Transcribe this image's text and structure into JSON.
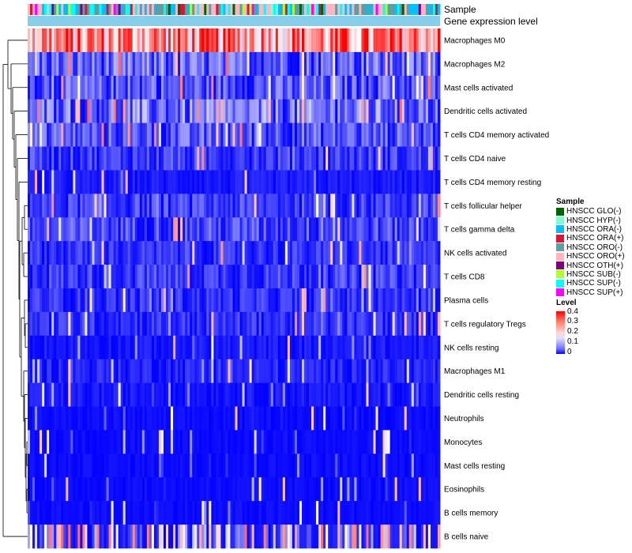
{
  "chart_data": {
    "type": "heatmap",
    "annotation_labels": [
      "Sample",
      "Gene expression level"
    ],
    "rows": [
      "Macrophages M0",
      "Macrophages M2",
      "Mast cells activated",
      "Dendritic cells activated",
      "T cells CD4 memory activated",
      "T cells CD4 naive",
      "T cells CD4 memory resting",
      "T cells follicular helper",
      "T cells gamma delta",
      "NK cells activated",
      "T cells CD8",
      "Plasma cells",
      "T cells regulatory  Tregs",
      "NK cells resting",
      "Macrophages M1",
      "Dendritic cells resting",
      "Neutrophils",
      "Monocytes",
      "Mast cells resting",
      "Eosinophils",
      "B cells memory",
      "B cells naive"
    ],
    "row_mean_level": [
      0.3,
      0.08,
      0.07,
      0.09,
      0.07,
      0.05,
      0.02,
      0.05,
      0.06,
      0.04,
      0.05,
      0.04,
      0.04,
      0.02,
      0.03,
      0.02,
      0.01,
      0.01,
      0.01,
      0.01,
      0.01,
      0.12
    ],
    "columns": 173,
    "sample_legend_title": "Sample",
    "sample_groups": [
      {
        "name": "HNSCC GLO(-)",
        "color": "#006400"
      },
      {
        "name": "HNSCC HYP(-)",
        "color": "#7fffd4"
      },
      {
        "name": "HNSCC ORA(-)",
        "color": "#00bfff"
      },
      {
        "name": "HNSCC ORA(+)",
        "color": "#dc143c"
      },
      {
        "name": "HNSCC ORO(-)",
        "color": "#5f9ea0"
      },
      {
        "name": "HNSCC ORO(+)",
        "color": "#ffb6c1"
      },
      {
        "name": "HNSCC OTH(+)",
        "color": "#800080"
      },
      {
        "name": "HNSCC SUB(-)",
        "color": "#adff2f"
      },
      {
        "name": "HNSCC SUP(-)",
        "color": "#00ffff"
      },
      {
        "name": "HNSCC SUP(+)",
        "color": "#ff00ff"
      }
    ],
    "level_legend_title": "Level",
    "level_ticks": [
      "0.4",
      "0.3",
      "0.2",
      "0.1",
      "0"
    ],
    "level_range": [
      0,
      0.4
    ],
    "colors": {
      "low": "#0000ff",
      "mid": "#ffffff",
      "high": "#ff0000",
      "gene_bar": "#87ceeb"
    }
  }
}
